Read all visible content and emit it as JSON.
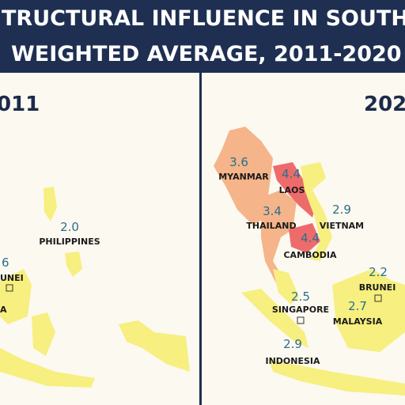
{
  "header": {
    "title_line1": "TRUCTURAL INFLUENCE IN SOUTHE",
    "title_line2": "WEIGHTED AVERAGE, 2011-2020"
  },
  "panels": [
    {
      "year": "011",
      "labels": [
        {
          "value": "2.0",
          "country": "PHILIPPINES"
        },
        {
          "value": "6",
          "country": "UNEI"
        },
        {
          "country": "A"
        }
      ]
    },
    {
      "year": "202",
      "labels": [
        {
          "value": "3.6",
          "country": "MYANMAR"
        },
        {
          "value": "4.4",
          "country": "LAOS"
        },
        {
          "value": "3.4",
          "country": "THAILAND"
        },
        {
          "value": "2.9",
          "country": "VIETNAM"
        },
        {
          "value": "4.4",
          "country": "CAMBODIA"
        },
        {
          "value": "2.2",
          "country": "BRUNEI"
        },
        {
          "value": "2.5",
          "country": "SINGAPORE"
        },
        {
          "value": "2.7",
          "country": "MALAYSIA"
        },
        {
          "value": "2.9",
          "country": "INDONESIA"
        }
      ]
    }
  ]
}
